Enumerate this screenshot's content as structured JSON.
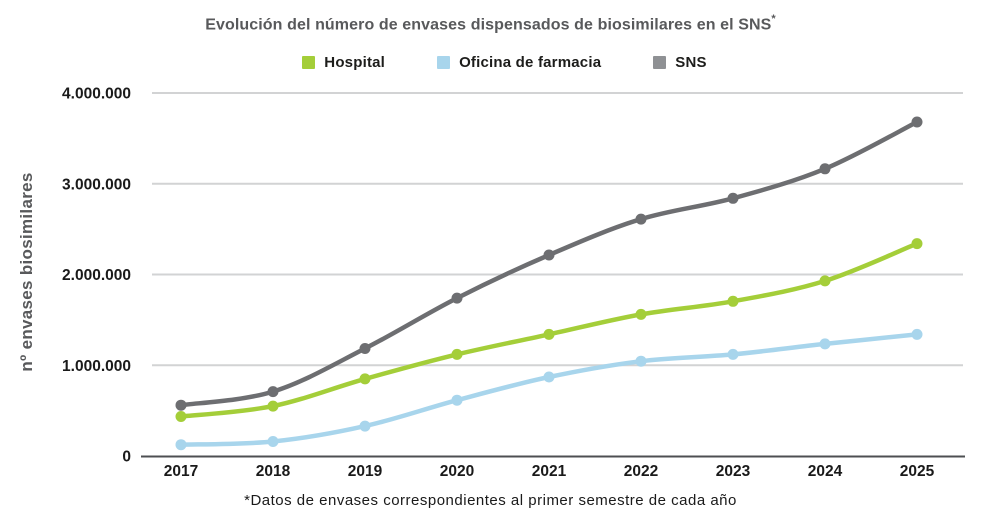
{
  "title": {
    "text": "Evolución del número de envases dispensados de biosimilares en el SNS",
    "footnote_marker": "*"
  },
  "legend": {
    "items": [
      {
        "label": "Hospital",
        "swatch_color": "#a4ce39"
      },
      {
        "label": "Oficina de farmacia",
        "swatch_color": "#a8d5ec"
      },
      {
        "label": "SNS",
        "swatch_color": "#8f9194"
      }
    ]
  },
  "footnote": "*Datos de envases correspondientes al primer semestre de cada año",
  "colors": {
    "hospital_green": "#a4ce39",
    "pharmacy_blue": "#a8d5ec",
    "sns_gray": "#6d6e71",
    "grid": "#d2d3d4",
    "axis": "#4d4f52",
    "tick_text": "#1a1a1a",
    "title_text": "#58595b"
  },
  "chart_data": {
    "type": "line",
    "title": "Evolución del número de envases dispensados de biosimilares en el SNS*",
    "categories": [
      "2017",
      "2018",
      "2019",
      "2020",
      "2021",
      "2022",
      "2023",
      "2024",
      "2025"
    ],
    "series": [
      {
        "name": "Hospital",
        "color": "#a4ce39",
        "values": [
          435000,
          550000,
          850000,
          1120000,
          1340000,
          1560000,
          1705000,
          1930000,
          2340000
        ]
      },
      {
        "name": "Oficina de farmacia",
        "color": "#a8d5ec",
        "values": [
          125000,
          160000,
          330000,
          615000,
          870000,
          1045000,
          1120000,
          1235000,
          1340000
        ]
      },
      {
        "name": "SNS",
        "color": "#6d6e71",
        "values": [
          560000,
          710000,
          1185000,
          1740000,
          2215000,
          2610000,
          2840000,
          3165000,
          3680000
        ]
      }
    ],
    "xlabel": "",
    "ylabel": "nº envases biosimilares",
    "ylim": [
      0,
      4000000
    ],
    "yticks": [
      {
        "value": 0,
        "label": "0"
      },
      {
        "value": 1000000,
        "label": "1.000.000"
      },
      {
        "value": 2000000,
        "label": "2.000.000"
      },
      {
        "value": 3000000,
        "label": "3.000.000"
      },
      {
        "value": 4000000,
        "label": "4.000.000"
      }
    ],
    "grid": "horizontal",
    "legend_position": "top",
    "footnote": "*Datos de envases correspondientes al primer semestre de cada año"
  }
}
